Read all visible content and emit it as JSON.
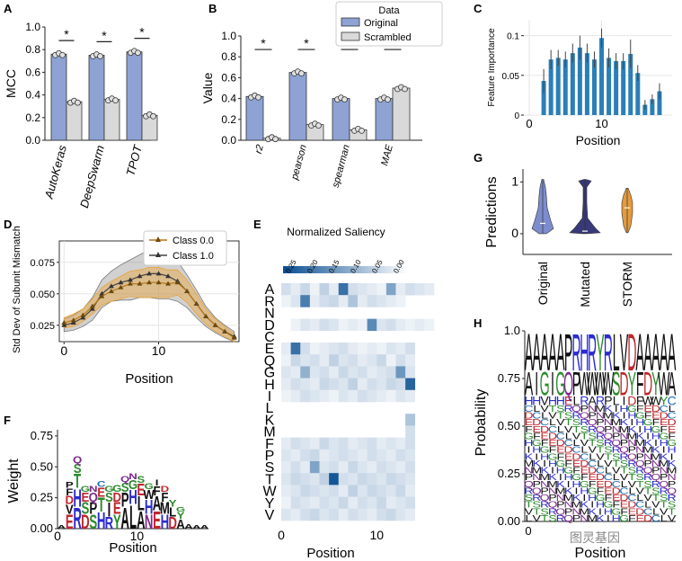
{
  "colors": {
    "original": "#8ea3d4",
    "scrambled": "#d9d9d9",
    "bar_c": "#2a7fb8",
    "class0": "#e8a43a",
    "class1": "#7a7a7a",
    "violin_orig": "#6f7fc8",
    "violin_mut": "#22246a",
    "violin_storm": "#e0902a",
    "heat": "#0b4f93"
  },
  "panels": {
    "A": {
      "letter": "A"
    },
    "B": {
      "letter": "B"
    },
    "C": {
      "letter": "C"
    },
    "D": {
      "letter": "D"
    },
    "E": {
      "letter": "E"
    },
    "F": {
      "letter": "F"
    },
    "G": {
      "letter": "G"
    },
    "H": {
      "letter": "H"
    }
  },
  "watermark": "图灵基因",
  "chart_data": [
    {
      "id": "A",
      "type": "bar",
      "ylabel": "MCC",
      "categories": [
        "AutoKeras",
        "DeepSwarm",
        "TPOT"
      ],
      "series": [
        {
          "name": "Original",
          "values": [
            0.76,
            0.75,
            0.78
          ]
        },
        {
          "name": "Scrambled",
          "values": [
            0.34,
            0.36,
            0.22
          ]
        }
      ],
      "ylim": [
        0,
        1.0
      ],
      "yticks": [
        "0.0",
        "0.2",
        "0.4",
        "0.6",
        "0.8",
        "1.0"
      ],
      "ytick_values": [
        0,
        0.2,
        0.4,
        0.6,
        0.8,
        1.0
      ],
      "significance": "*"
    },
    {
      "id": "B",
      "type": "bar",
      "ylabel": "Value",
      "categories": [
        "r2",
        "pearson",
        "spearman",
        "MAE"
      ],
      "series": [
        {
          "name": "Original",
          "values": [
            0.42,
            0.65,
            0.4,
            0.4
          ]
        },
        {
          "name": "Scrambled",
          "values": [
            0.02,
            0.15,
            0.1,
            0.5
          ]
        }
      ],
      "ylim": [
        0,
        1.0
      ],
      "yticks": [
        "0.0",
        "0.2",
        "0.4",
        "0.6",
        "0.8",
        "1.0"
      ],
      "ytick_values": [
        0,
        0.2,
        0.4,
        0.6,
        0.8,
        1.0
      ],
      "significance": "*",
      "legend": {
        "title": "Data",
        "items": [
          "Original",
          "Scrambled"
        ],
        "placement": "top-right"
      }
    },
    {
      "id": "C",
      "type": "bar",
      "ylabel": "Feature Importance",
      "xlabel": "Position",
      "x": [
        2,
        3,
        4,
        5,
        6,
        7,
        8,
        9,
        10,
        11,
        12,
        13,
        14,
        15,
        16,
        17,
        18
      ],
      "values": [
        0.043,
        0.07,
        0.072,
        0.07,
        0.078,
        0.085,
        0.078,
        0.07,
        0.097,
        0.072,
        0.068,
        0.068,
        0.077,
        0.053,
        0.013,
        0.02,
        0.03
      ],
      "errors": [
        0.015,
        0.012,
        0.01,
        0.01,
        0.012,
        0.015,
        0.012,
        0.01,
        0.012,
        0.012,
        0.01,
        0.01,
        0.018,
        0.01,
        0.006,
        0.006,
        0.01
      ],
      "ylim": [
        0,
        0.12
      ],
      "xlim": [
        0,
        19
      ],
      "yticks": [
        "0",
        "0.05",
        "0.1"
      ],
      "ytick_values": [
        0,
        0.05,
        0.1
      ],
      "xticks": [
        "0",
        "10"
      ],
      "xtick_values": [
        0,
        10
      ]
    },
    {
      "id": "D",
      "type": "line",
      "ylabel": "Std Dev of Subunit Mismatch",
      "xlabel": "Position",
      "x": [
        0,
        1,
        2,
        3,
        4,
        5,
        6,
        7,
        8,
        9,
        10,
        11,
        12,
        13,
        14,
        15,
        16,
        17,
        18
      ],
      "series": [
        {
          "name": "Class 0.0",
          "values": [
            0.027,
            0.029,
            0.033,
            0.04,
            0.048,
            0.052,
            0.055,
            0.058,
            0.058,
            0.059,
            0.059,
            0.058,
            0.059,
            0.052,
            0.042,
            0.032,
            0.025,
            0.02,
            0.015
          ],
          "spread": [
            0.004,
            0.005,
            0.005,
            0.006,
            0.007,
            0.008,
            0.009,
            0.01,
            0.011,
            0.012,
            0.012,
            0.011,
            0.01,
            0.009,
            0.008,
            0.006,
            0.005,
            0.004,
            0.003
          ]
        },
        {
          "name": "Class 1.0",
          "values": [
            0.025,
            0.027,
            0.031,
            0.038,
            0.05,
            0.056,
            0.059,
            0.061,
            0.064,
            0.066,
            0.066,
            0.064,
            0.06,
            0.052,
            0.042,
            0.032,
            0.025,
            0.02,
            0.016
          ],
          "spread": [
            0.005,
            0.006,
            0.007,
            0.009,
            0.011,
            0.012,
            0.014,
            0.016,
            0.017,
            0.019,
            0.02,
            0.018,
            0.016,
            0.013,
            0.011,
            0.008,
            0.006,
            0.005,
            0.004
          ]
        }
      ],
      "ylim": [
        0.012,
        0.092
      ],
      "xlim": [
        -0.5,
        18.5
      ],
      "yticks": [
        "0.025",
        "0.050",
        "0.075"
      ],
      "ytick_values": [
        0.025,
        0.05,
        0.075
      ],
      "xticks": [
        "0",
        "10"
      ],
      "xtick_values": [
        0,
        10
      ],
      "legend": {
        "items": [
          "Class 0.0",
          "Class 1.0"
        ],
        "placement": "top-right"
      }
    },
    {
      "id": "E",
      "type": "heatmap",
      "title": "Normalized Saliency",
      "xlabel": "Position",
      "rows": [
        "A",
        "R",
        "N",
        "D",
        "C",
        "E",
        "Q",
        "G",
        "H",
        "I",
        "L",
        "K",
        "M",
        "F",
        "P",
        "S",
        "T",
        "W",
        "Y",
        "V"
      ],
      "colorbar_ticks": [
        "0.25",
        "0.20",
        "0.15",
        "0.10",
        "0.05",
        "0.00"
      ],
      "xticks": [
        "0",
        "10"
      ],
      "xtick_values": [
        0,
        10
      ],
      "n_positions": 16,
      "values": [
        [
          0.05,
          0.03,
          0.06,
          0.02,
          0.07,
          0.03,
          0.22,
          0.05,
          0.04,
          0.03,
          0.02,
          0.14,
          0.03,
          0.05,
          0.04,
          0.03
        ],
        [
          0.02,
          0.04,
          0.2,
          0.03,
          0.05,
          0.06,
          0.03,
          0.09,
          0.03,
          0.05,
          0.04,
          0.03,
          0.02,
          0.0,
          0.0,
          0.0
        ],
        [
          0.0,
          0.0,
          0.0,
          0.0,
          0.0,
          0.0,
          0.0,
          0.0,
          0.0,
          0.0,
          0.0,
          0.0,
          0.0,
          0.0,
          0.0,
          0.0
        ],
        [
          0.0,
          0.02,
          0.04,
          0.03,
          0.05,
          0.04,
          0.02,
          0.03,
          0.02,
          0.18,
          0.04,
          0.05,
          0.03,
          0.02,
          0.03,
          0.02
        ],
        [
          0.0,
          0.0,
          0.0,
          0.0,
          0.0,
          0.0,
          0.0,
          0.0,
          0.0,
          0.0,
          0.0,
          0.0,
          0.0,
          0.0,
          0.0,
          0.0
        ],
        [
          0.03,
          0.22,
          0.05,
          0.02,
          0.03,
          0.04,
          0.05,
          0.03,
          0.02,
          0.03,
          0.02,
          0.04,
          0.03,
          0.05,
          0.0,
          0.0
        ],
        [
          0.02,
          0.06,
          0.04,
          0.05,
          0.03,
          0.07,
          0.04,
          0.05,
          0.03,
          0.04,
          0.06,
          0.02,
          0.05,
          0.03,
          0.0,
          0.0
        ],
        [
          0.04,
          0.03,
          0.12,
          0.04,
          0.05,
          0.03,
          0.06,
          0.04,
          0.05,
          0.03,
          0.04,
          0.05,
          0.16,
          0.04,
          0.0,
          0.0
        ],
        [
          0.03,
          0.05,
          0.04,
          0.03,
          0.06,
          0.05,
          0.04,
          0.07,
          0.03,
          0.05,
          0.04,
          0.06,
          0.05,
          0.24,
          0.0,
          0.0
        ],
        [
          0.02,
          0.03,
          0.05,
          0.04,
          0.03,
          0.02,
          0.04,
          0.03,
          0.05,
          0.04,
          0.03,
          0.02,
          0.04,
          0.03,
          0.0,
          0.0
        ],
        [
          0.0,
          0.0,
          0.0,
          0.0,
          0.0,
          0.0,
          0.0,
          0.0,
          0.0,
          0.0,
          0.0,
          0.0,
          0.0,
          0.0,
          0.0,
          0.0
        ],
        [
          0.0,
          0.0,
          0.0,
          0.0,
          0.0,
          0.0,
          0.0,
          0.0,
          0.0,
          0.0,
          0.0,
          0.0,
          0.0,
          0.09,
          0.0,
          0.0
        ],
        [
          0.0,
          0.0,
          0.0,
          0.0,
          0.0,
          0.0,
          0.0,
          0.0,
          0.0,
          0.0,
          0.0,
          0.0,
          0.0,
          0.05,
          0.0,
          0.0
        ],
        [
          0.03,
          0.05,
          0.04,
          0.03,
          0.06,
          0.04,
          0.05,
          0.03,
          0.04,
          0.05,
          0.03,
          0.04,
          0.03,
          0.05,
          0.0,
          0.0
        ],
        [
          0.04,
          0.03,
          0.05,
          0.06,
          0.03,
          0.04,
          0.05,
          0.04,
          0.03,
          0.05,
          0.04,
          0.03,
          0.05,
          0.04,
          0.0,
          0.0
        ],
        [
          0.03,
          0.05,
          0.03,
          0.14,
          0.04,
          0.05,
          0.03,
          0.06,
          0.04,
          0.03,
          0.05,
          0.04,
          0.03,
          0.05,
          0.0,
          0.0
        ],
        [
          0.04,
          0.06,
          0.05,
          0.04,
          0.07,
          0.26,
          0.05,
          0.04,
          0.06,
          0.05,
          0.04,
          0.06,
          0.05,
          0.04,
          0.0,
          0.0
        ],
        [
          0.03,
          0.04,
          0.06,
          0.05,
          0.04,
          0.05,
          0.03,
          0.07,
          0.04,
          0.06,
          0.05,
          0.04,
          0.06,
          0.03,
          0.0,
          0.0
        ],
        [
          0.02,
          0.05,
          0.04,
          0.03,
          0.05,
          0.04,
          0.06,
          0.03,
          0.05,
          0.04,
          0.06,
          0.03,
          0.04,
          0.05,
          0.0,
          0.0
        ],
        [
          0.04,
          0.03,
          0.05,
          0.06,
          0.04,
          0.05,
          0.03,
          0.05,
          0.04,
          0.03,
          0.05,
          0.06,
          0.04,
          0.03,
          0.0,
          0.0
        ]
      ]
    },
    {
      "id": "F",
      "type": "sequence-logo",
      "ylabel": "Weight",
      "xlabel": "Position",
      "ylim": [
        0,
        0.8
      ],
      "yticks": [
        "0.00",
        "0.25",
        "0.50",
        "0.75"
      ],
      "ytick_values": [
        0,
        0.25,
        0.5,
        0.75
      ],
      "xticks": [
        "0",
        "10"
      ],
      "xtick_values": [
        0,
        10
      ],
      "columns": [
        {
          "x": 0,
          "letters": [
            "A"
          ],
          "heights": [
            0.03
          ]
        },
        {
          "x": 1,
          "letters": [
            "E",
            "V",
            "D",
            "F",
            "P"
          ],
          "heights": [
            0.12,
            0.08,
            0.07,
            0.06,
            0.05
          ]
        },
        {
          "x": 2,
          "letters": [
            "R",
            "H",
            "T",
            "S",
            "Q"
          ],
          "heights": [
            0.18,
            0.15,
            0.12,
            0.08,
            0.06
          ]
        },
        {
          "x": 3,
          "letters": [
            "D",
            "S",
            "E",
            "G"
          ],
          "heights": [
            0.12,
            0.1,
            0.08,
            0.05
          ]
        },
        {
          "x": 4,
          "letters": [
            "S",
            "P",
            "Q",
            "N"
          ],
          "heights": [
            0.12,
            0.1,
            0.08,
            0.05
          ]
        },
        {
          "x": 5,
          "letters": [
            "H",
            "T",
            "E",
            "C"
          ],
          "heights": [
            0.14,
            0.12,
            0.08,
            0.05
          ]
        },
        {
          "x": 6,
          "letters": [
            "R",
            "I",
            "S",
            "G"
          ],
          "heights": [
            0.1,
            0.12,
            0.08,
            0.05
          ]
        },
        {
          "x": 7,
          "letters": [
            "Y",
            "E",
            "D",
            "G"
          ],
          "heights": [
            0.12,
            0.1,
            0.08,
            0.06
          ]
        },
        {
          "x": 8,
          "letters": [
            "A",
            "P",
            "S",
            "Q"
          ],
          "heights": [
            0.18,
            0.12,
            0.08,
            0.05
          ]
        },
        {
          "x": 9,
          "letters": [
            "L",
            "H",
            "G",
            "N"
          ],
          "heights": [
            0.2,
            0.12,
            0.08,
            0.05
          ]
        },
        {
          "x": 10,
          "letters": [
            "A",
            "L",
            "E",
            "S"
          ],
          "heights": [
            0.15,
            0.12,
            0.1,
            0.06
          ]
        },
        {
          "x": 11,
          "letters": [
            "N",
            "H",
            "W",
            "G"
          ],
          "heights": [
            0.12,
            0.12,
            0.08,
            0.05
          ]
        },
        {
          "x": 12,
          "letters": [
            "E",
            "A",
            "F",
            "I"
          ],
          "heights": [
            0.15,
            0.12,
            0.08,
            0.05
          ]
        },
        {
          "x": 13,
          "letters": [
            "H",
            "M",
            "F",
            "D"
          ],
          "heights": [
            0.12,
            0.1,
            0.08,
            0.05
          ]
        },
        {
          "x": 14,
          "letters": [
            "D",
            "L",
            "Y"
          ],
          "heights": [
            0.1,
            0.08,
            0.06
          ]
        },
        {
          "x": 15,
          "letters": [
            "A",
            "Y",
            "G"
          ],
          "heights": [
            0.08,
            0.06,
            0.04
          ]
        },
        {
          "x": 16,
          "letters": [
            "A"
          ],
          "heights": [
            0.04
          ]
        },
        {
          "x": 17,
          "letters": [
            "A"
          ],
          "heights": [
            0.03
          ]
        },
        {
          "x": 18,
          "letters": [
            "A"
          ],
          "heights": [
            0.03
          ]
        }
      ]
    },
    {
      "id": "G",
      "type": "violin",
      "ylabel": "Predictions",
      "categories": [
        "Original",
        "Mutated",
        "STORM"
      ],
      "ylim": [
        -0.4,
        1.25
      ],
      "yticks": [
        "0",
        "1"
      ],
      "ytick_values": [
        0,
        1
      ],
      "medians": [
        0.2,
        0.05,
        0.5
      ],
      "ranges": [
        [
          0.0,
          1.05
        ],
        [
          0.0,
          1.05
        ],
        [
          0.02,
          0.88
        ]
      ]
    },
    {
      "id": "H",
      "type": "sequence-logo",
      "ylabel": "Probability",
      "xlabel": "Position",
      "ylim": [
        0,
        1.0
      ],
      "yticks": [
        "0.00",
        "0.25",
        "0.50",
        "0.75",
        "1.0"
      ],
      "ytick_values": [
        0,
        0.25,
        0.5,
        0.75,
        1.0
      ],
      "xticks": [
        "0"
      ],
      "xtick_values": [
        0
      ],
      "top_row": [
        "A",
        "A",
        "A",
        "A",
        "A",
        "P",
        "R",
        "H",
        "R",
        "Y",
        "R",
        "L",
        "V",
        "D",
        "A",
        "A",
        "A",
        "A",
        "A"
      ],
      "second_row": [
        "A",
        "I",
        "G",
        "I",
        "G",
        "Q",
        "P",
        "W",
        "W",
        "W",
        "W",
        "S",
        "D",
        "Y",
        "F",
        "D",
        "Y",
        "W",
        "A"
      ],
      "third_row": [
        "H",
        "H",
        "V",
        "H",
        "H",
        "E",
        "L",
        "R",
        "A",
        "R",
        "P",
        "L",
        "I",
        "D",
        "F",
        "W",
        "W",
        "Y",
        "C"
      ]
    }
  ]
}
